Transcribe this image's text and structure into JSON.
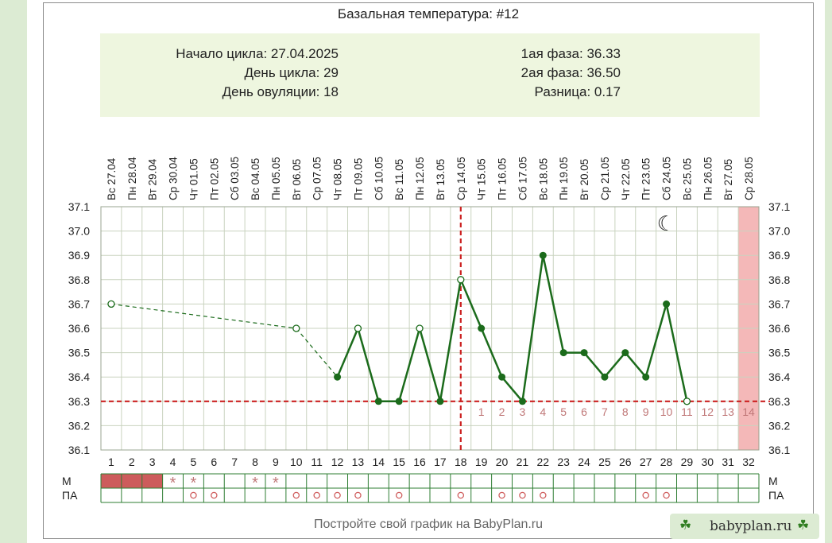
{
  "title": "Базальная температура: #12",
  "info": {
    "cycle_start": "Начало цикла: 27.04.2025",
    "cycle_day": "День цикла: 29",
    "ovulation_day": "День овуляции: 18",
    "phase1": "1ая фаза: 36.33",
    "phase2": "2ая фаза: 36.50",
    "difference": "Разница: 0.17"
  },
  "footer_text": "Постройте свой график на BabyPlan.ru",
  "badge_text": "babyplan.ru",
  "icons": {
    "badge": "clover-icon",
    "night": "moon-icon"
  },
  "colors": {
    "line": "#1b6b1b",
    "coverline": "#cc2222",
    "menstruation": "#cd5c5c",
    "forecast_column": "#f4b8b8",
    "info_bg": "#eef6df"
  },
  "chart_data": {
    "type": "line",
    "title": "Базальная температура: #12",
    "dates": [
      "Вс 27.04",
      "Пн 28.04",
      "Вт 29.04",
      "Ср 30.04",
      "Чт 01.05",
      "Пт 02.05",
      "Сб 03.05",
      "Вс 04.05",
      "Пн 05.05",
      "Вт 06.05",
      "Ср 07.05",
      "Чт 08.05",
      "Пт 09.05",
      "Сб 10.05",
      "Вс 11.05",
      "Пн 12.05",
      "Вт 13.05",
      "Ср 14.05",
      "Чт 15.05",
      "Пт 16.05",
      "Сб 17.05",
      "Вс 18.05",
      "Пн 19.05",
      "Вт 20.05",
      "Ср 21.05",
      "Чт 22.05",
      "Пт 23.05",
      "Сб 24.05",
      "Вс 25.05",
      "Пн 26.05",
      "Вт 27.05",
      "Ср 28.05"
    ],
    "cycle_days": [
      1,
      2,
      3,
      4,
      5,
      6,
      7,
      8,
      9,
      10,
      11,
      12,
      13,
      14,
      15,
      16,
      17,
      18,
      19,
      20,
      21,
      22,
      23,
      24,
      25,
      26,
      27,
      28,
      29,
      30,
      31,
      32
    ],
    "y_ticks": [
      "37.1",
      "37.0",
      "36.9",
      "36.8",
      "36.7",
      "36.6",
      "36.5",
      "36.4",
      "36.3",
      "36.2",
      "36.1"
    ],
    "ylim": [
      36.1,
      37.1
    ],
    "temperatures": [
      {
        "day": 1,
        "value": 36.7,
        "marker": "open"
      },
      {
        "day": 10,
        "value": 36.6,
        "marker": "open"
      },
      {
        "day": 12,
        "value": 36.4,
        "marker": "filled"
      },
      {
        "day": 13,
        "value": 36.6,
        "marker": "open"
      },
      {
        "day": 14,
        "value": 36.3,
        "marker": "filled"
      },
      {
        "day": 15,
        "value": 36.3,
        "marker": "filled"
      },
      {
        "day": 16,
        "value": 36.6,
        "marker": "open"
      },
      {
        "day": 17,
        "value": 36.3,
        "marker": "filled"
      },
      {
        "day": 18,
        "value": 36.8,
        "marker": "open"
      },
      {
        "day": 19,
        "value": 36.6,
        "marker": "filled"
      },
      {
        "day": 20,
        "value": 36.4,
        "marker": "filled"
      },
      {
        "day": 21,
        "value": 36.3,
        "marker": "filled"
      },
      {
        "day": 22,
        "value": 36.9,
        "marker": "filled"
      },
      {
        "day": 23,
        "value": 36.5,
        "marker": "filled"
      },
      {
        "day": 24,
        "value": 36.5,
        "marker": "filled"
      },
      {
        "day": 25,
        "value": 36.4,
        "marker": "filled"
      },
      {
        "day": 26,
        "value": 36.5,
        "marker": "filled"
      },
      {
        "day": 27,
        "value": 36.4,
        "marker": "filled"
      },
      {
        "day": 28,
        "value": 36.7,
        "marker": "filled"
      },
      {
        "day": 29,
        "value": 36.3,
        "marker": "open"
      }
    ],
    "dashed_until_day": 12,
    "coverline": 36.3,
    "ovulation_day": 18,
    "post_ovulation_labels": [
      "1",
      "2",
      "3",
      "4",
      "5",
      "6",
      "7",
      "8",
      "9",
      "10",
      "11",
      "12",
      "13",
      "14"
    ],
    "forecast_day": 32,
    "night_icon_day": 28,
    "rows": {
      "m_label": "М",
      "pa_label": "ПА",
      "menstruation_days": [
        1,
        2,
        3
      ],
      "m_star_days": [
        4,
        5,
        8,
        9
      ],
      "pa_circle_days": [
        5,
        6,
        10,
        11,
        12,
        13,
        15,
        18,
        20,
        21,
        22,
        27,
        28
      ],
      "star_glyph": "*",
      "circle_glyph": "o"
    },
    "grid": true
  }
}
